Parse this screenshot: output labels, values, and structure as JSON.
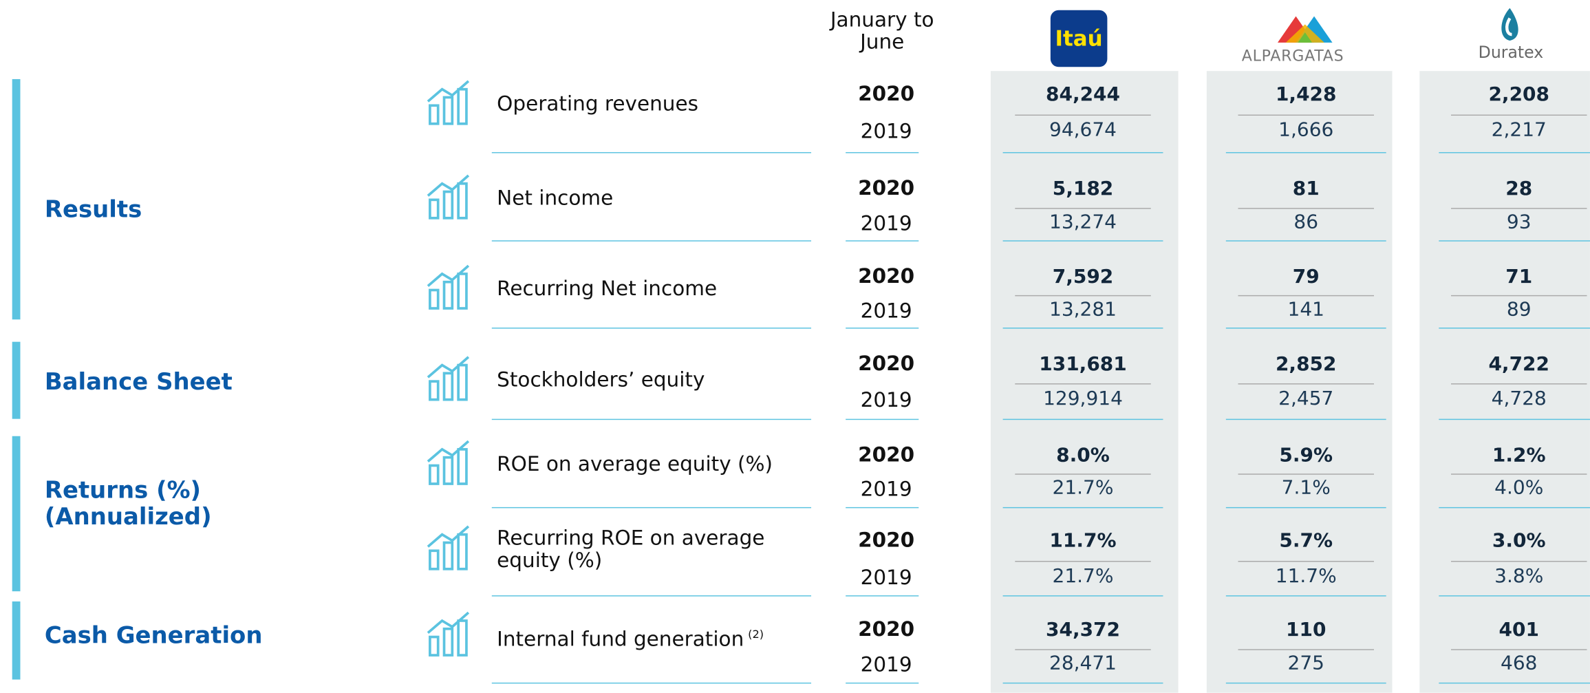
{
  "header": {
    "period": "January to June",
    "companies": [
      "Itaú",
      "ALPARGATAS",
      "Duratex"
    ]
  },
  "sections": [
    {
      "title": "Results",
      "rows": [
        {
          "label": "Operating revenues",
          "years": [
            "2020",
            "2019"
          ],
          "values": [
            [
              "84,244",
              "94,674"
            ],
            [
              "1,428",
              "1,666"
            ],
            [
              "2,208",
              "2,217"
            ]
          ]
        },
        {
          "label": "Net income",
          "years": [
            "2020",
            "2019"
          ],
          "values": [
            [
              "5,182",
              "13,274"
            ],
            [
              "81",
              "86"
            ],
            [
              "28",
              "93"
            ]
          ]
        },
        {
          "label": "Recurring Net income",
          "years": [
            "2020",
            "2019"
          ],
          "values": [
            [
              "7,592",
              "13,281"
            ],
            [
              "79",
              "141"
            ],
            [
              "71",
              "89"
            ]
          ]
        }
      ]
    },
    {
      "title": "Balance Sheet",
      "rows": [
        {
          "label": "Stockholders’ equity",
          "years": [
            "2020",
            "2019"
          ],
          "values": [
            [
              "131,681",
              "129,914"
            ],
            [
              "2,852",
              "2,457"
            ],
            [
              "4,722",
              "4,728"
            ]
          ]
        }
      ]
    },
    {
      "title": "Returns (%)\n(Annualized)",
      "rows": [
        {
          "label": "ROE on average equity (%)",
          "years": [
            "2020",
            "2019"
          ],
          "values": [
            [
              "8.0%",
              "21.7%"
            ],
            [
              "5.9%",
              "7.1%"
            ],
            [
              "1.2%",
              "4.0%"
            ]
          ]
        },
        {
          "label": "Recurring ROE on average equity (%)",
          "years": [
            "2020",
            "2019"
          ],
          "values": [
            [
              "11.7%",
              "21.7%"
            ],
            [
              "5.7%",
              "11.7%"
            ],
            [
              "3.0%",
              "3.8%"
            ]
          ]
        }
      ]
    },
    {
      "title": "Cash Generation",
      "rows": [
        {
          "label": "Internal fund generation",
          "note": "(2)",
          "years": [
            "2020",
            "2019"
          ],
          "values": [
            [
              "34,372",
              "28,471"
            ],
            [
              "110",
              "275"
            ],
            [
              "401",
              "468"
            ]
          ]
        }
      ]
    }
  ]
}
